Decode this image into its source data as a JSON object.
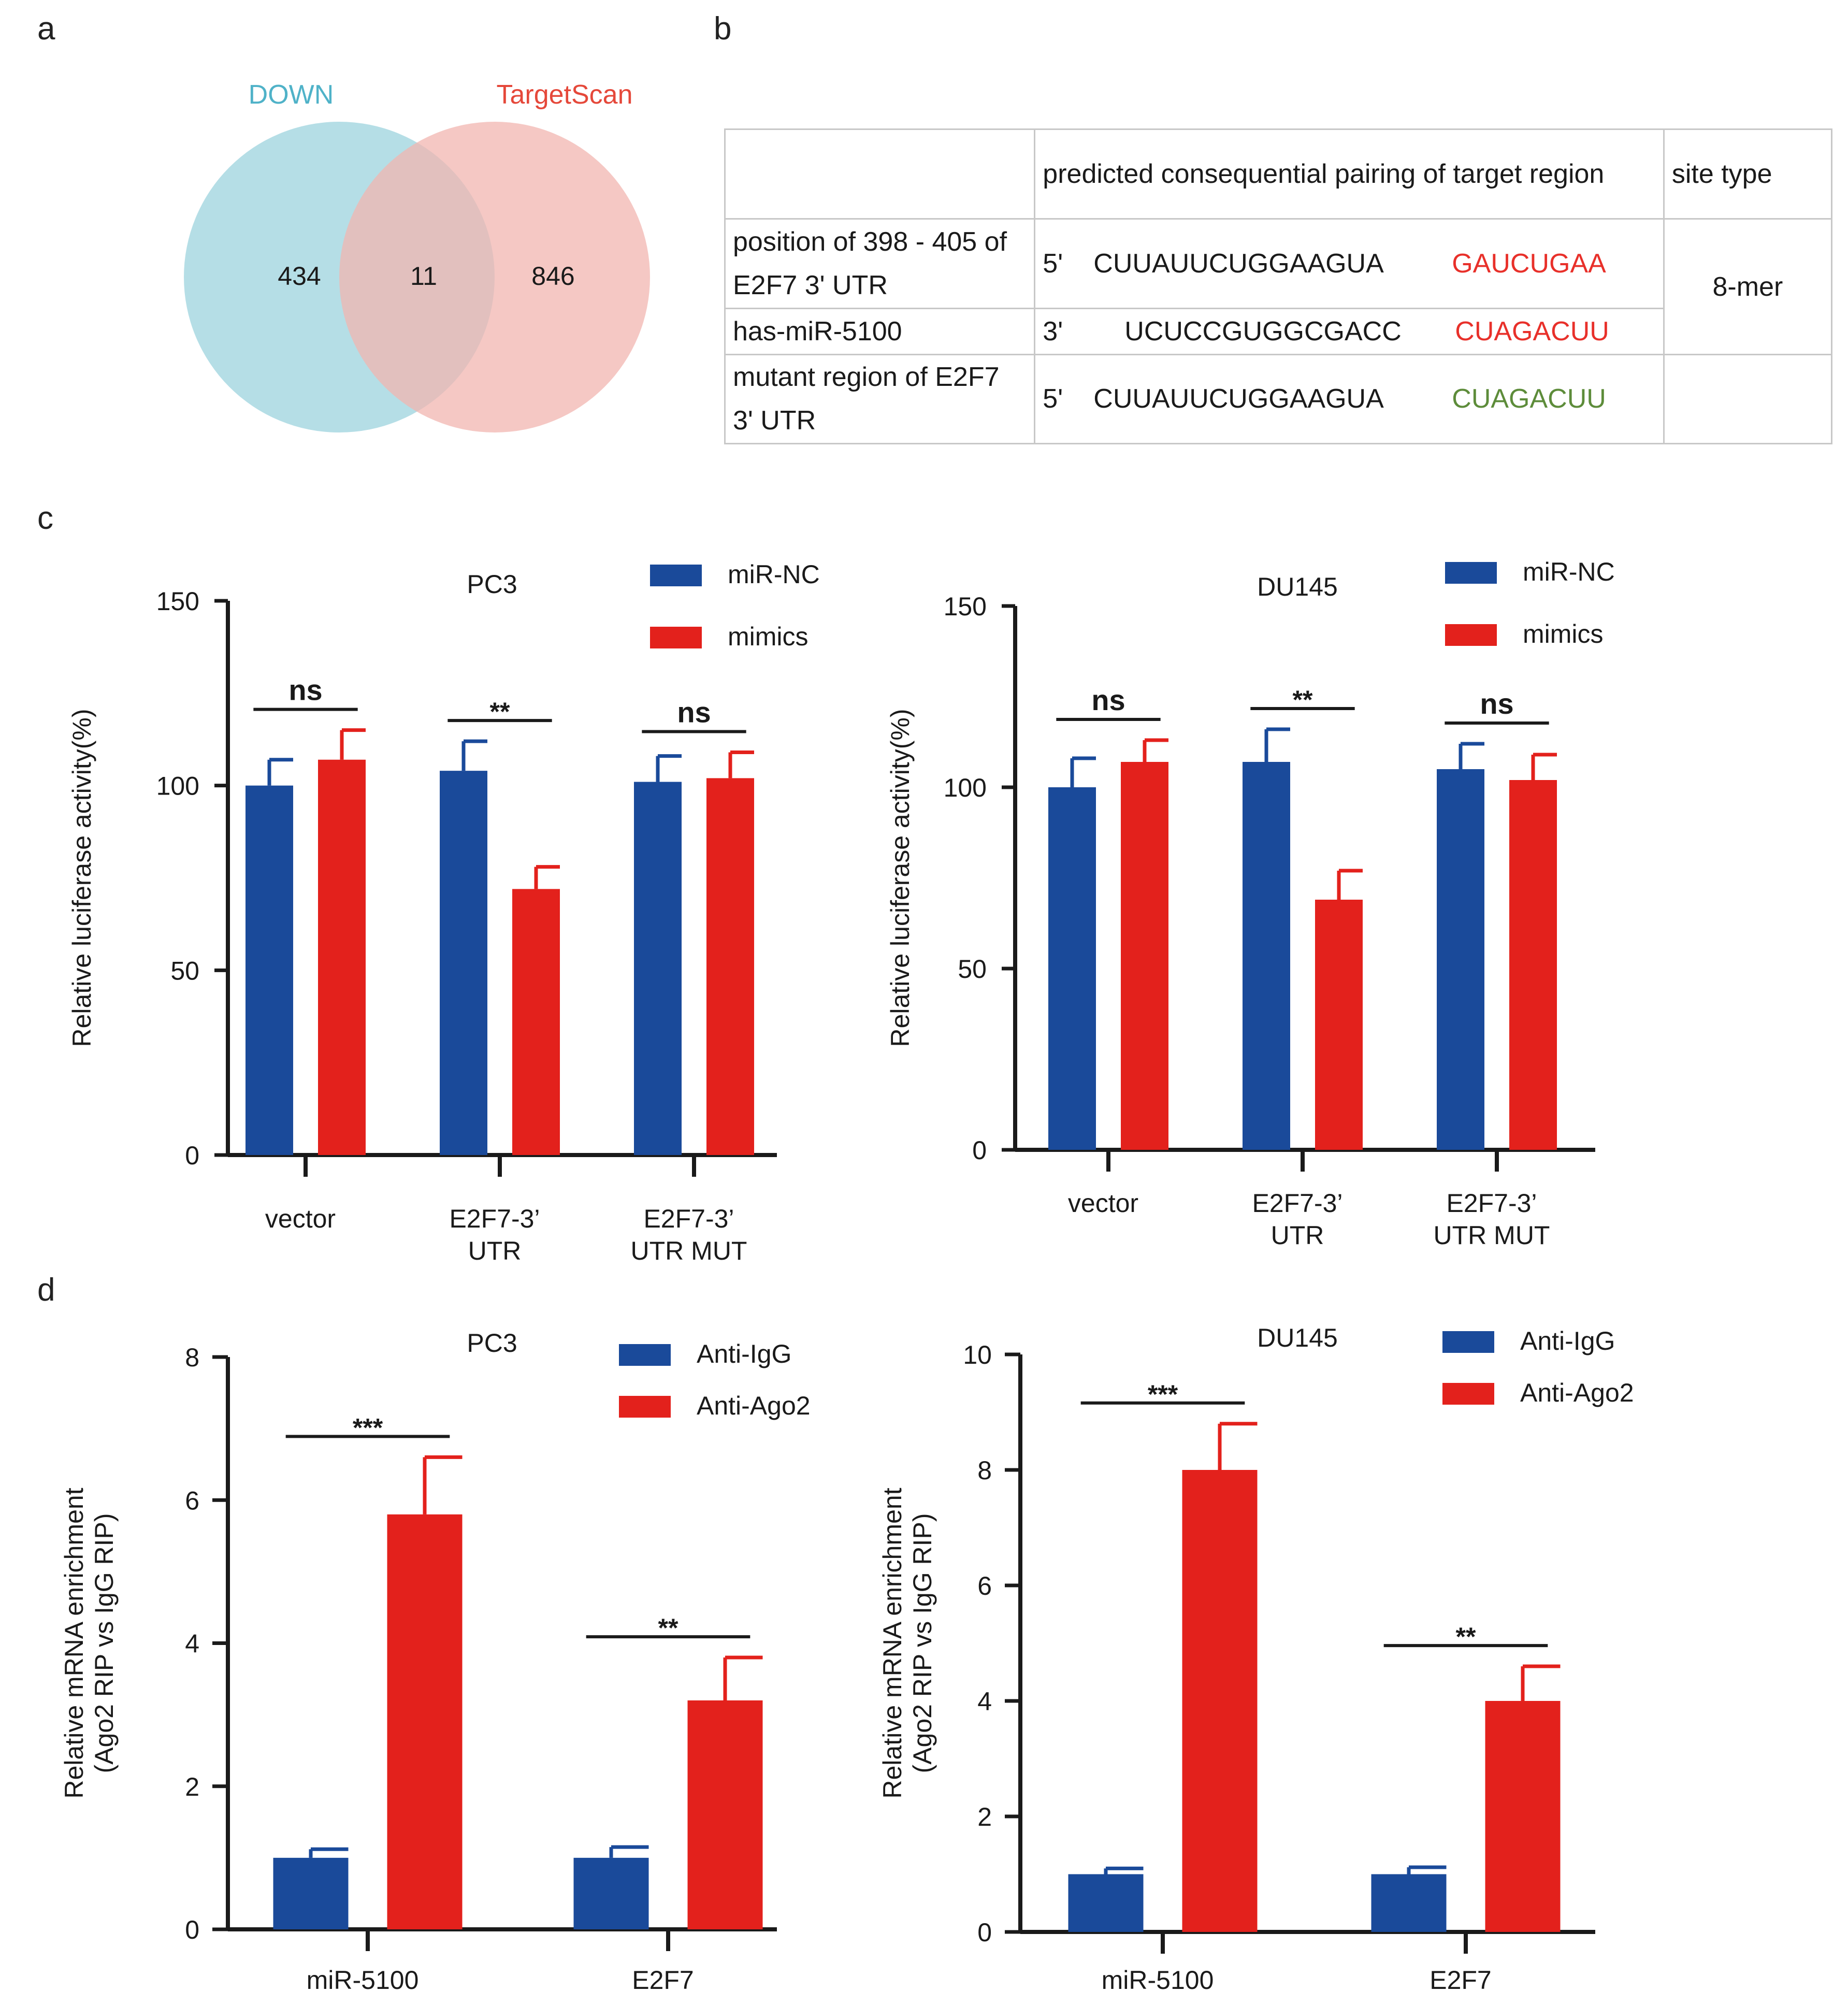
{
  "panels": {
    "a": "a",
    "b": "b",
    "c": "c",
    "d": "d"
  },
  "venn": {
    "left_label": "DOWN",
    "right_label": "TargetScan",
    "left_only": "434",
    "overlap": "11",
    "right_only": "846",
    "left_color": "#a8d8e2",
    "right_color": "#f2b6b0"
  },
  "table": {
    "header": [
      "",
      "predicted consequential pairing of target region",
      "site type"
    ],
    "rows": [
      {
        "label": "position of 398 - 405 of E2F7 3' UTR",
        "prime": "5'",
        "seq": "CUUAUUCUGGAAGUA",
        "seed": "GAUCUGAA",
        "seed_color": "red"
      },
      {
        "label": "has-miR-5100",
        "prime": "3'",
        "seq": "UCUCCGUGGCGACC",
        "seed": "CUAGACUU",
        "seed_color": "red"
      },
      {
        "label": "mutant region of E2F7 3' UTR",
        "prime": "5'",
        "seq": "CUUAUUCUGGAAGUA",
        "seed": "CUAGACUU",
        "seed_color": "green"
      }
    ],
    "site_type": "8-mer"
  },
  "colors": {
    "blue": "#1a4a9a",
    "red": "#e3211c"
  },
  "chart_data": [
    {
      "type": "bar",
      "title": "PC3",
      "ylabel": "Relative luciferase activity(%)",
      "ylim": [
        0,
        150
      ],
      "yticks": [
        "0",
        "50",
        "100",
        "150"
      ],
      "categories": [
        "vector",
        "E2F7-3' UTR",
        "E2F7-3' UTR MUT"
      ],
      "category_lines": [
        [
          "vector"
        ],
        [
          "E2F7-3’",
          "UTR"
        ],
        [
          "E2F7-3’",
          "UTR MUT"
        ]
      ],
      "series": [
        {
          "name": "miR-NC",
          "values": [
            100,
            104,
            101
          ],
          "errors": [
            7,
            8,
            7
          ]
        },
        {
          "name": "mimics",
          "values": [
            107,
            72,
            102
          ],
          "errors": [
            8,
            6,
            7
          ]
        }
      ],
      "significance": [
        "ns",
        "**",
        "ns"
      ]
    },
    {
      "type": "bar",
      "title": "DU145",
      "ylabel": "Relative luciferase activity(%)",
      "ylim": [
        0,
        150
      ],
      "yticks": [
        "0",
        "50",
        "100",
        "150"
      ],
      "categories": [
        "vector",
        "E2F7-3' UTR",
        "E2F7-3' UTR MUT"
      ],
      "category_lines": [
        [
          "vector"
        ],
        [
          "E2F7-3’",
          "UTR"
        ],
        [
          "E2F7-3’",
          "UTR MUT"
        ]
      ],
      "series": [
        {
          "name": "miR-NC",
          "values": [
            100,
            107,
            105
          ],
          "errors": [
            8,
            9,
            7
          ]
        },
        {
          "name": "mimics",
          "values": [
            107,
            69,
            102
          ],
          "errors": [
            6,
            8,
            7
          ]
        }
      ],
      "significance": [
        "ns",
        "**",
        "ns"
      ]
    },
    {
      "type": "bar",
      "title": "PC3",
      "ylabel": "Relative mRNA enrichment (Ago2 RIP vs IgG RIP)",
      "ylabel_lines": [
        "Relative mRNA enrichment",
        "(Ago2 RIP vs IgG RIP)"
      ],
      "ylim": [
        0,
        8
      ],
      "yticks": [
        "0",
        "2",
        "4",
        "6",
        "8"
      ],
      "categories": [
        "miR-5100",
        "E2F7"
      ],
      "category_lines": [
        [
          "miR-5100"
        ],
        [
          "E2F7"
        ]
      ],
      "series": [
        {
          "name": "Anti-IgG",
          "values": [
            1.0,
            1.0
          ],
          "errors": [
            0.12,
            0.15
          ]
        },
        {
          "name": "Anti-Ago2",
          "values": [
            5.8,
            3.2
          ],
          "errors": [
            0.8,
            0.6
          ]
        }
      ],
      "significance": [
        "***",
        "**"
      ]
    },
    {
      "type": "bar",
      "title": "DU145",
      "ylabel": "Relative mRNA enrichment (Ago2 RIP vs IgG RIP)",
      "ylabel_lines": [
        "Relative mRNA enrichment",
        "(Ago2 RIP vs IgG RIP)"
      ],
      "ylim": [
        0,
        10
      ],
      "yticks": [
        "0",
        "2",
        "4",
        "6",
        "8",
        "10"
      ],
      "categories": [
        "miR-5100",
        "E2F7"
      ],
      "category_lines": [
        [
          "miR-5100"
        ],
        [
          "E2F7"
        ]
      ],
      "series": [
        {
          "name": "Anti-IgG",
          "values": [
            1.0,
            1.0
          ],
          "errors": [
            0.1,
            0.12
          ]
        },
        {
          "name": "Anti-Ago2",
          "values": [
            8.0,
            4.0
          ],
          "errors": [
            0.8,
            0.6
          ]
        }
      ],
      "significance": [
        "***",
        "**"
      ]
    }
  ]
}
